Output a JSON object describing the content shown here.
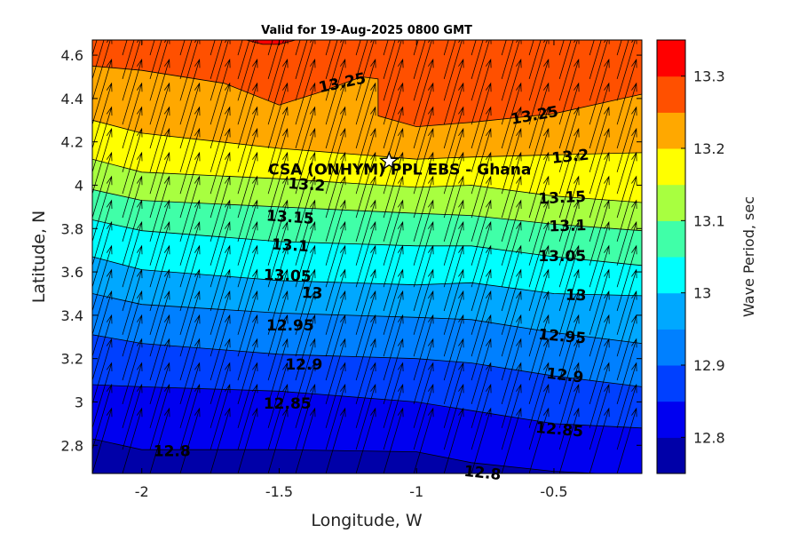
{
  "chart_data": {
    "type": "contourf",
    "title": "Valid for 19-Aug-2025 0800 GMT",
    "xlabel": "Longitude, W",
    "ylabel": "Latitude, N",
    "colorbar_label": "Wave Period, sec",
    "xlim": [
      -2.18,
      -0.18
    ],
    "ylim": [
      2.67,
      4.67
    ],
    "x_ticks": [
      -2,
      -1.5,
      -1,
      -0.5
    ],
    "x_tick_labels": [
      "-2",
      "-1.5",
      "-1",
      "-0.5"
    ],
    "y_ticks": [
      2.8,
      3,
      3.2,
      3.4,
      3.6,
      3.8,
      4,
      4.2,
      4.4,
      4.6
    ],
    "y_tick_labels": [
      "2.8",
      "3",
      "3.2",
      "3.4",
      "3.6",
      "3.8",
      "4",
      "4.2",
      "4.4",
      "4.6"
    ],
    "colorbar_range": [
      12.75,
      13.35
    ],
    "colorbar_ticks": [
      12.8,
      12.9,
      13,
      13.1,
      13.2,
      13.3
    ],
    "colorbar_tick_labels": [
      "12.8",
      "12.9",
      "13",
      "13.1",
      "13.2",
      "13.3"
    ],
    "levels": [
      12.75,
      12.8,
      12.85,
      12.9,
      12.95,
      13,
      13.05,
      13.1,
      13.15,
      13.2,
      13.25,
      13.3,
      13.35
    ],
    "band_colors": [
      "#0000a8",
      "#0000f0",
      "#0040ff",
      "#0080ff",
      "#00a8ff",
      "#00ffff",
      "#40ffa8",
      "#a8ff40",
      "#ffff00",
      "#ffa800",
      "#ff5000",
      "#ff0000",
      "#a80000"
    ],
    "isolines": [
      {
        "level": 12.8,
        "x": [
          -2.18,
          -2.0,
          -1.5,
          -1.0,
          -0.8,
          -0.5,
          -0.18
        ],
        "y": [
          2.83,
          2.78,
          2.78,
          2.77,
          2.72,
          2.68,
          2.66
        ]
      },
      {
        "level": 12.85,
        "x": [
          -2.18,
          -2.0,
          -1.5,
          -1.0,
          -0.8,
          -0.5,
          -0.18
        ],
        "y": [
          3.08,
          3.07,
          3.05,
          3.0,
          2.96,
          2.9,
          2.88
        ]
      },
      {
        "level": 12.9,
        "x": [
          -2.18,
          -2.0,
          -1.5,
          -1.0,
          -0.8,
          -0.5,
          -0.18
        ],
        "y": [
          3.31,
          3.27,
          3.22,
          3.2,
          3.18,
          3.12,
          3.07
        ]
      },
      {
        "level": 12.95,
        "x": [
          -2.18,
          -2.0,
          -1.5,
          -1.0,
          -0.8,
          -0.5,
          -0.18
        ],
        "y": [
          3.5,
          3.45,
          3.41,
          3.39,
          3.38,
          3.32,
          3.27
        ]
      },
      {
        "level": 13.0,
        "x": [
          -2.18,
          -2.0,
          -1.5,
          -1.0,
          -0.8,
          -0.5,
          -0.18
        ],
        "y": [
          3.67,
          3.61,
          3.56,
          3.54,
          3.55,
          3.5,
          3.49
        ]
      },
      {
        "level": 13.05,
        "x": [
          -2.18,
          -2.0,
          -1.5,
          -1.0,
          -0.8,
          -0.5,
          -0.18
        ],
        "y": [
          3.84,
          3.79,
          3.74,
          3.72,
          3.72,
          3.67,
          3.63
        ]
      },
      {
        "level": 13.1,
        "x": [
          -2.18,
          -2.0,
          -1.5,
          -1.0,
          -0.8,
          -0.5,
          -0.18
        ],
        "y": [
          3.98,
          3.93,
          3.9,
          3.87,
          3.86,
          3.82,
          3.79
        ]
      },
      {
        "level": 13.15,
        "x": [
          -2.18,
          -2.0,
          -1.5,
          -1.0,
          -0.8,
          -0.5,
          -0.18
        ],
        "y": [
          4.12,
          4.06,
          4.03,
          3.99,
          4.0,
          3.95,
          3.92
        ]
      },
      {
        "level": 13.2,
        "x": [
          -2.18,
          -2.0,
          -1.5,
          -1.0,
          -0.8,
          -0.5,
          -0.18
        ],
        "y": [
          4.3,
          4.24,
          4.17,
          4.12,
          4.13,
          4.14,
          4.15
        ]
      },
      {
        "level": 13.25,
        "x": [
          -2.18,
          -2.0,
          -1.7,
          -1.5,
          -1.35,
          -1.2,
          -1.14,
          -1.14,
          -1.0,
          -0.8,
          -0.5,
          -0.18
        ],
        "y": [
          4.55,
          4.53,
          4.47,
          4.37,
          4.43,
          4.5,
          4.49,
          4.32,
          4.27,
          4.29,
          4.33,
          4.42
        ]
      },
      {
        "level": 13.3,
        "x": [
          -1.62,
          -1.56,
          -1.5,
          -1.44
        ],
        "y": [
          4.67,
          4.65,
          4.65,
          4.67
        ]
      }
    ],
    "contour_labels": [
      {
        "text": "13.25",
        "x": -1.27,
        "y": 4.47,
        "angle": -12
      },
      {
        "text": "13.25",
        "x": -0.57,
        "y": 4.32,
        "angle": -10
      },
      {
        "text": "13.2",
        "x": -0.44,
        "y": 4.13,
        "angle": -6
      },
      {
        "text": "13.2",
        "x": -1.4,
        "y": 4.0,
        "angle": 4
      },
      {
        "text": "13.15",
        "x": -1.46,
        "y": 3.85,
        "angle": 4
      },
      {
        "text": "13.15",
        "x": -0.47,
        "y": 3.94,
        "angle": -3
      },
      {
        "text": "13.1",
        "x": -1.46,
        "y": 3.72,
        "angle": 4
      },
      {
        "text": "13.1",
        "x": -0.45,
        "y": 3.81,
        "angle": -2
      },
      {
        "text": "13.05",
        "x": -1.47,
        "y": 3.58,
        "angle": 2
      },
      {
        "text": "13.05",
        "x": -0.47,
        "y": 3.67,
        "angle": 0
      },
      {
        "text": "13",
        "x": -1.38,
        "y": 3.5,
        "angle": 2
      },
      {
        "text": "13",
        "x": -0.42,
        "y": 3.49,
        "angle": 2
      },
      {
        "text": "12.95",
        "x": -1.46,
        "y": 3.35,
        "angle": 0
      },
      {
        "text": "12.95",
        "x": -0.47,
        "y": 3.3,
        "angle": 5
      },
      {
        "text": "12.9",
        "x": -1.41,
        "y": 3.17,
        "angle": 0
      },
      {
        "text": "12.9",
        "x": -0.46,
        "y": 3.12,
        "angle": 7
      },
      {
        "text": "12.85",
        "x": -1.47,
        "y": 2.99,
        "angle": 0
      },
      {
        "text": "12.85",
        "x": -0.48,
        "y": 2.87,
        "angle": 5
      },
      {
        "text": "12.8",
        "x": -1.89,
        "y": 2.77,
        "angle": 0
      },
      {
        "text": "12.8",
        "x": -0.76,
        "y": 2.67,
        "angle": 6
      }
    ],
    "vectors": {
      "x": [
        -2.18,
        -2.07,
        -1.97,
        -1.86,
        -1.75,
        -1.65,
        -1.54,
        -1.44,
        -1.33,
        -1.22,
        -1.12,
        -1.01,
        -0.9,
        -0.8,
        -0.69,
        -0.59,
        -0.48,
        -0.37,
        -0.27
      ],
      "y": [
        2.67,
        2.78,
        2.88,
        2.99,
        3.1,
        3.21,
        3.31,
        3.42,
        3.53,
        3.63,
        3.74,
        3.85,
        3.96,
        4.06,
        4.17,
        4.28,
        4.39,
        4.49,
        4.6
      ],
      "direction": "north-northeast",
      "u": 0.07,
      "v": 0.3
    },
    "marker": {
      "x": -1.1,
      "y": 4.11,
      "label": "CSA (ONHYM) PPL EBS  - Ghana"
    }
  }
}
